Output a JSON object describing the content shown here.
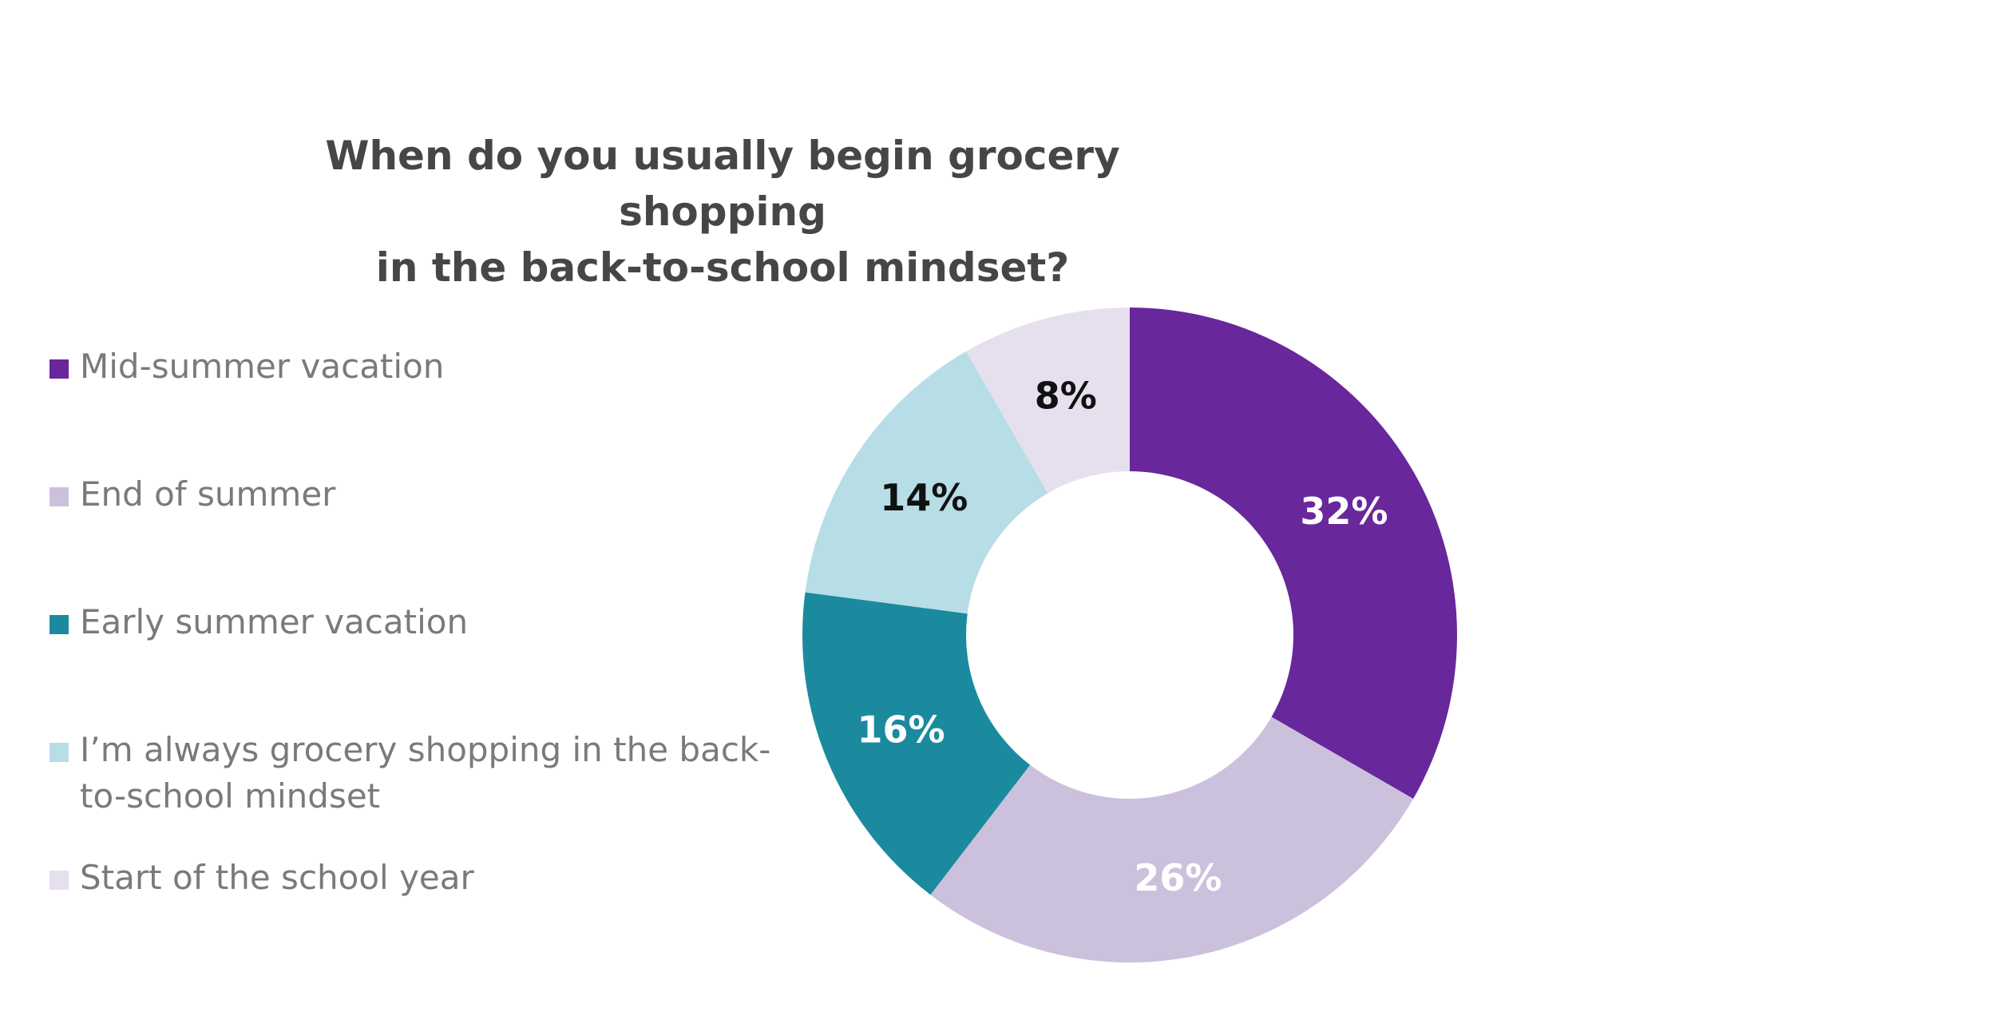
{
  "chart_data": {
    "type": "pie",
    "title": "When do you usually begin grocery shopping in the back-to-school mindset?",
    "title_lines": [
      "When do you usually begin grocery shopping",
      "in the back-to-school mindset?"
    ],
    "donut": true,
    "legend_position": "left",
    "slices": [
      {
        "label": "Mid-summer vacation",
        "label_lines": [
          "Mid-summer vacation"
        ],
        "value": 32,
        "display": "32%",
        "color": "#68279b",
        "text_color": "#ffffff"
      },
      {
        "label": "End of summer",
        "label_lines": [
          "End of summer"
        ],
        "value": 26,
        "display": "26%",
        "color": "#cbc1dc",
        "text_color": "#ffffff"
      },
      {
        "label": "Early summer vacation",
        "label_lines": [
          "Early summer vacation"
        ],
        "value": 16,
        "display": "16%",
        "color": "#1b8a9e",
        "text_color": "#ffffff"
      },
      {
        "label": "I’m always grocery shopping in the back-to-school mindset",
        "label_lines": [
          "I’m always grocery shopping in the back-",
          "to-school mindset"
        ],
        "value": 14,
        "display": "14%",
        "color": "#b7dde7",
        "text_color": "#111111"
      },
      {
        "label": "Start of the school year",
        "label_lines": [
          "Start of the school year"
        ],
        "value": 8,
        "display": "8%",
        "color": "#e6e0ee",
        "text_color": "#111111"
      }
    ]
  }
}
